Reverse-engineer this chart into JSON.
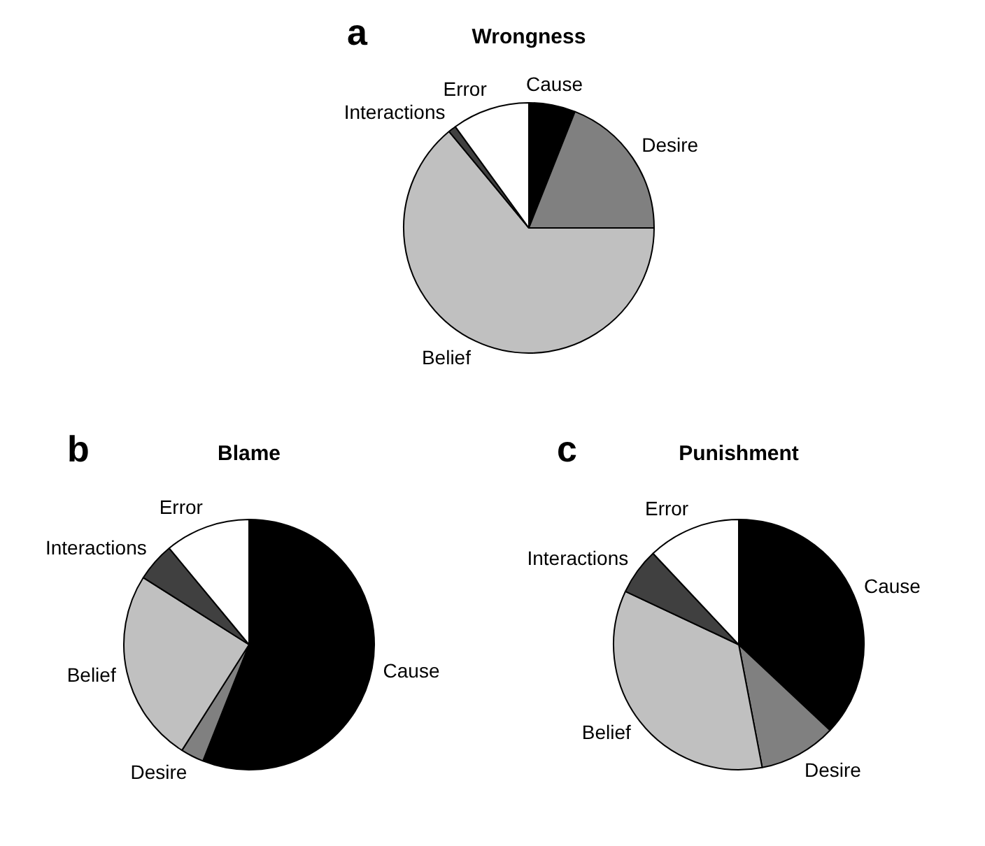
{
  "chart_data": [
    {
      "type": "pie",
      "title": "Wrongness",
      "annotations": [
        "a"
      ],
      "categories": [
        "Cause",
        "Desire",
        "Belief",
        "Interactions",
        "Error"
      ],
      "values": [
        6,
        19,
        64,
        1,
        10
      ],
      "colors": [
        "#000000",
        "#808080",
        "#c0c0c0",
        "#404040",
        "#ffffff"
      ]
    },
    {
      "type": "pie",
      "title": "Blame",
      "annotations": [
        "b"
      ],
      "categories": [
        "Cause",
        "Desire",
        "Belief",
        "Interactions",
        "Error"
      ],
      "values": [
        56,
        3,
        25,
        5,
        11
      ],
      "colors": [
        "#000000",
        "#808080",
        "#c0c0c0",
        "#404040",
        "#ffffff"
      ]
    },
    {
      "type": "pie",
      "title": "Punishment",
      "annotations": [
        "c"
      ],
      "categories": [
        "Cause",
        "Desire",
        "Belief",
        "Interactions",
        "Error"
      ],
      "values": [
        37,
        10,
        35,
        6,
        12
      ],
      "colors": [
        "#000000",
        "#808080",
        "#c0c0c0",
        "#404040",
        "#ffffff"
      ]
    }
  ]
}
